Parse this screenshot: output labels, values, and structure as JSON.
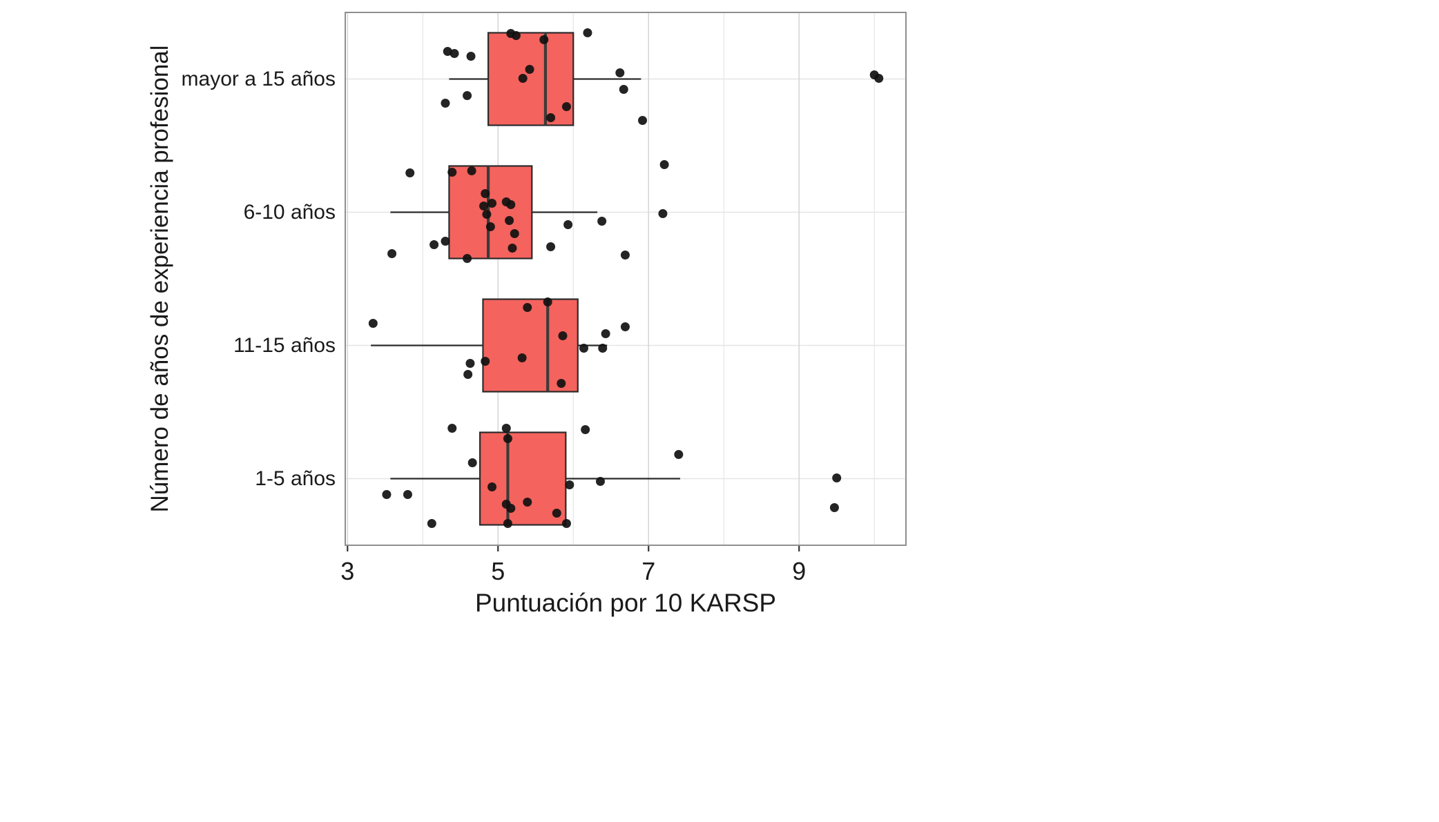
{
  "chart_data": {
    "type": "boxplot",
    "orientation": "horizontal",
    "title": "",
    "x_axis": {
      "label": "Puntuación por 10 KARSP",
      "ticks": [
        3,
        5,
        7,
        9
      ],
      "range": [
        2.97,
        10.42
      ],
      "minor_gridlines": [
        4,
        6,
        8,
        10
      ]
    },
    "y_axis": {
      "label": "Número de años de experiencia profesional",
      "categories": [
        "mayor a 15 años",
        "6-10 años",
        "11-15 años",
        "1-5 años"
      ]
    },
    "style": {
      "box_fill": "#F4635E",
      "box_stroke": "#2b2b2b",
      "median_color": "#3a3a3a",
      "point_color": "#111111",
      "grid_major": "#d6d6d6",
      "grid_minor": "#e5e5e5",
      "panel_border": "#8f8f8f",
      "text_color": "#1a1a1a"
    },
    "groups": [
      {
        "category": "mayor a 15 años",
        "box": {
          "whisker_low": 4.35,
          "q1": 4.87,
          "median": 5.63,
          "q3": 6.0,
          "whisker_high": 6.9
        },
        "points": [
          [
            5.17,
            -66
          ],
          [
            5.24,
            -63
          ],
          [
            6.19,
            -67
          ],
          [
            5.61,
            -57
          ],
          [
            4.33,
            -40
          ],
          [
            4.42,
            -37
          ],
          [
            4.64,
            -33
          ],
          [
            5.42,
            -14
          ],
          [
            6.62,
            -9
          ],
          [
            10.0,
            -6
          ],
          [
            10.06,
            -1
          ],
          [
            5.33,
            -1
          ],
          [
            6.67,
            15
          ],
          [
            4.59,
            24
          ],
          [
            4.3,
            35
          ],
          [
            5.91,
            40
          ],
          [
            5.7,
            56
          ],
          [
            6.92,
            60
          ]
        ]
      },
      {
        "category": "6-10 años",
        "box": {
          "whisker_low": 3.57,
          "q1": 4.35,
          "median": 4.87,
          "q3": 5.45,
          "whisker_high": 6.32
        },
        "points": [
          [
            3.83,
            -57
          ],
          [
            4.39,
            -58
          ],
          [
            4.65,
            -60
          ],
          [
            7.21,
            -69
          ],
          [
            4.83,
            -27
          ],
          [
            5.11,
            -15
          ],
          [
            4.92,
            -13
          ],
          [
            5.17,
            -11
          ],
          [
            4.81,
            -9
          ],
          [
            7.19,
            2
          ],
          [
            4.85,
            3
          ],
          [
            5.15,
            12
          ],
          [
            6.38,
            13
          ],
          [
            5.93,
            18
          ],
          [
            4.9,
            21
          ],
          [
            5.22,
            31
          ],
          [
            4.3,
            42
          ],
          [
            4.15,
            47
          ],
          [
            5.7,
            50
          ],
          [
            5.19,
            52
          ],
          [
            3.59,
            60
          ],
          [
            6.69,
            62
          ],
          [
            4.59,
            67
          ]
        ]
      },
      {
        "category": "11-15 años",
        "box": {
          "whisker_low": 3.31,
          "q1": 4.8,
          "median": 5.66,
          "q3": 6.06,
          "whisker_high": 6.45
        },
        "points": [
          [
            5.66,
            -63
          ],
          [
            5.39,
            -55
          ],
          [
            3.34,
            -32
          ],
          [
            6.69,
            -27
          ],
          [
            6.43,
            -17
          ],
          [
            5.86,
            -14
          ],
          [
            6.14,
            4
          ],
          [
            6.39,
            4
          ],
          [
            5.32,
            18
          ],
          [
            4.83,
            23
          ],
          [
            4.63,
            26
          ],
          [
            4.6,
            42
          ],
          [
            5.84,
            55
          ]
        ]
      },
      {
        "category": "1-5 años",
        "box": {
          "whisker_low": 3.57,
          "q1": 4.76,
          "median": 5.13,
          "q3": 5.9,
          "whisker_high": 7.42
        },
        "points": [
          [
            4.39,
            -73
          ],
          [
            5.11,
            -73
          ],
          [
            6.16,
            -71
          ],
          [
            5.13,
            -58
          ],
          [
            7.4,
            -35
          ],
          [
            4.66,
            -23
          ],
          [
            9.5,
            -1
          ],
          [
            6.36,
            4
          ],
          [
            5.95,
            9
          ],
          [
            4.92,
            12
          ],
          [
            3.52,
            23
          ],
          [
            3.8,
            23
          ],
          [
            5.39,
            34
          ],
          [
            5.11,
            37
          ],
          [
            9.47,
            42
          ],
          [
            5.17,
            43
          ],
          [
            5.78,
            50
          ],
          [
            5.13,
            65
          ],
          [
            5.91,
            65
          ],
          [
            4.12,
            65
          ]
        ]
      }
    ],
    "layout_hints": {
      "legend": "none",
      "grid": "on",
      "panel_background": "#ffffff"
    }
  }
}
